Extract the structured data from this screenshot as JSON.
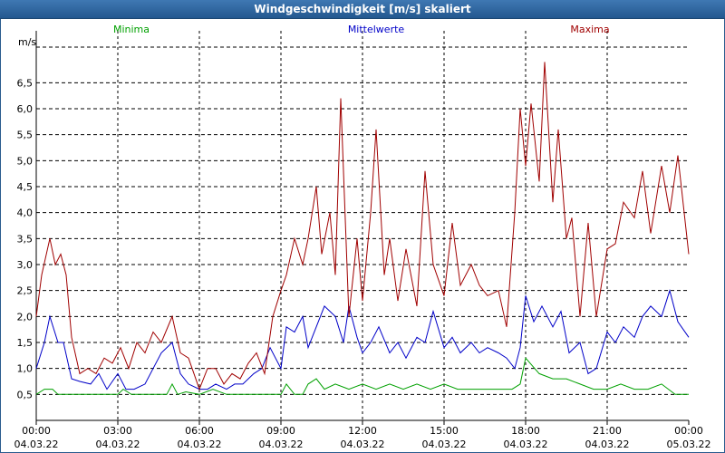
{
  "window": {
    "title": "Windgeschwindigkeit [m/s] skaliert"
  },
  "chart_data": {
    "type": "line",
    "title": "Windgeschwindigkeit [m/s] skaliert",
    "ylabel": "m/s",
    "xlabel": "",
    "ylim": [
      0,
      7.5
    ],
    "xlim": [
      0,
      24
    ],
    "grid": true,
    "legend_position": "top",
    "yticks": [
      "0,5",
      "1,0",
      "1,5",
      "2,0",
      "2,5",
      "3,0",
      "3,5",
      "4,0",
      "4,5",
      "5,0",
      "5,5",
      "6,0",
      "6,5"
    ],
    "xticks": [
      {
        "time": "00:00",
        "date": "04.03.22"
      },
      {
        "time": "03:00",
        "date": "04.03.22"
      },
      {
        "time": "06:00",
        "date": "04.03.22"
      },
      {
        "time": "09:00",
        "date": "04.03.22"
      },
      {
        "time": "12:00",
        "date": "04.03.22"
      },
      {
        "time": "15:00",
        "date": "04.03.22"
      },
      {
        "time": "18:00",
        "date": "04.03.22"
      },
      {
        "time": "21:00",
        "date": "04.03.22"
      },
      {
        "time": "00:00",
        "date": "05.03.22"
      }
    ],
    "series": [
      {
        "name": "Minima",
        "color": "#00a000",
        "x": [
          0,
          0.3,
          0.6,
          0.8,
          1.2,
          2,
          3,
          3.2,
          3.5,
          4,
          4.8,
          5,
          5.2,
          5.5,
          6,
          6.5,
          7,
          8,
          9,
          9.2,
          9.5,
          9.8,
          10,
          10.3,
          10.6,
          11,
          11.5,
          12,
          12.5,
          13,
          13.5,
          14,
          14.5,
          15,
          15.5,
          16,
          16.5,
          17,
          17.5,
          17.8,
          18,
          18.5,
          19,
          19.5,
          20,
          20.5,
          21,
          21.5,
          22,
          22.5,
          23,
          23.5,
          24
        ],
        "y": [
          0.5,
          0.6,
          0.6,
          0.5,
          0.5,
          0.5,
          0.5,
          0.6,
          0.5,
          0.5,
          0.5,
          0.7,
          0.5,
          0.55,
          0.5,
          0.6,
          0.5,
          0.5,
          0.5,
          0.7,
          0.5,
          0.5,
          0.7,
          0.8,
          0.6,
          0.7,
          0.6,
          0.7,
          0.6,
          0.7,
          0.6,
          0.7,
          0.6,
          0.7,
          0.6,
          0.6,
          0.6,
          0.6,
          0.6,
          0.7,
          1.2,
          0.9,
          0.8,
          0.8,
          0.7,
          0.6,
          0.6,
          0.7,
          0.6,
          0.6,
          0.7,
          0.5,
          0.5
        ]
      },
      {
        "name": "Mittelwerte",
        "color": "#0000c8",
        "x": [
          0,
          0.3,
          0.5,
          0.8,
          1,
          1.3,
          1.6,
          2,
          2.3,
          2.6,
          3,
          3.3,
          3.6,
          4,
          4.3,
          4.6,
          5,
          5.3,
          5.6,
          6,
          6.3,
          6.6,
          7,
          7.3,
          7.6,
          8,
          8.3,
          8.6,
          9,
          9.2,
          9.5,
          9.8,
          10,
          10.3,
          10.6,
          11,
          11.3,
          11.5,
          11.8,
          12,
          12.3,
          12.6,
          13,
          13.3,
          13.6,
          14,
          14.3,
          14.6,
          15,
          15.3,
          15.6,
          16,
          16.3,
          16.6,
          17,
          17.3,
          17.6,
          17.8,
          18,
          18.3,
          18.6,
          19,
          19.3,
          19.6,
          20,
          20.3,
          20.6,
          21,
          21.3,
          21.6,
          22,
          22.3,
          22.6,
          23,
          23.3,
          23.6,
          24
        ],
        "y": [
          1.0,
          1.5,
          2.0,
          1.5,
          1.5,
          0.8,
          0.75,
          0.7,
          0.9,
          0.6,
          0.9,
          0.6,
          0.6,
          0.7,
          1.0,
          1.3,
          1.5,
          0.9,
          0.7,
          0.6,
          0.6,
          0.7,
          0.6,
          0.7,
          0.7,
          0.9,
          1.0,
          1.4,
          1.0,
          1.8,
          1.7,
          2.0,
          1.4,
          1.8,
          2.2,
          2.0,
          1.5,
          2.2,
          1.6,
          1.3,
          1.5,
          1.8,
          1.3,
          1.5,
          1.2,
          1.6,
          1.5,
          2.1,
          1.4,
          1.6,
          1.3,
          1.5,
          1.3,
          1.4,
          1.3,
          1.2,
          1.0,
          1.4,
          2.4,
          1.9,
          2.2,
          1.8,
          2.1,
          1.3,
          1.5,
          0.9,
          1.0,
          1.7,
          1.5,
          1.8,
          1.6,
          2.0,
          2.2,
          2.0,
          2.5,
          1.9,
          1.6
        ]
      },
      {
        "name": "Maxima",
        "color": "#a00000",
        "x": [
          0,
          0.2,
          0.5,
          0.7,
          0.9,
          1.1,
          1.3,
          1.6,
          1.9,
          2.2,
          2.5,
          2.8,
          3.1,
          3.4,
          3.7,
          4,
          4.3,
          4.6,
          5,
          5.3,
          5.6,
          6,
          6.3,
          6.6,
          6.9,
          7.2,
          7.5,
          7.8,
          8.1,
          8.4,
          8.7,
          9,
          9.2,
          9.5,
          9.8,
          10,
          10.3,
          10.5,
          10.8,
          11,
          11.2,
          11.5,
          11.8,
          12,
          12.3,
          12.5,
          12.8,
          13,
          13.3,
          13.6,
          14,
          14.3,
          14.6,
          15,
          15.3,
          15.6,
          16,
          16.3,
          16.6,
          17,
          17.3,
          17.6,
          17.8,
          18,
          18.2,
          18.5,
          18.7,
          19,
          19.2,
          19.5,
          19.7,
          20,
          20.3,
          20.6,
          21,
          21.3,
          21.6,
          22,
          22.3,
          22.6,
          23,
          23.3,
          23.6,
          24
        ],
        "y": [
          2.0,
          2.8,
          3.5,
          3.0,
          3.2,
          2.8,
          1.6,
          0.9,
          1.0,
          0.9,
          1.2,
          1.1,
          1.4,
          1.0,
          1.5,
          1.3,
          1.7,
          1.5,
          2.0,
          1.3,
          1.2,
          0.6,
          1.0,
          1.0,
          0.7,
          0.9,
          0.8,
          1.1,
          1.3,
          0.9,
          2.0,
          2.5,
          2.8,
          3.5,
          3.0,
          3.5,
          4.5,
          3.2,
          4.0,
          2.8,
          6.2,
          2.0,
          3.5,
          2.3,
          4.0,
          5.6,
          2.8,
          3.5,
          2.3,
          3.3,
          2.2,
          4.8,
          3.0,
          2.4,
          3.8,
          2.6,
          3.0,
          2.6,
          2.4,
          2.5,
          1.8,
          4.0,
          6.0,
          4.9,
          6.1,
          4.6,
          6.9,
          4.2,
          5.6,
          3.5,
          3.9,
          2.0,
          3.8,
          2.0,
          3.3,
          3.4,
          4.2,
          3.9,
          4.8,
          3.6,
          4.9,
          4.0,
          5.1,
          3.2
        ]
      }
    ]
  }
}
